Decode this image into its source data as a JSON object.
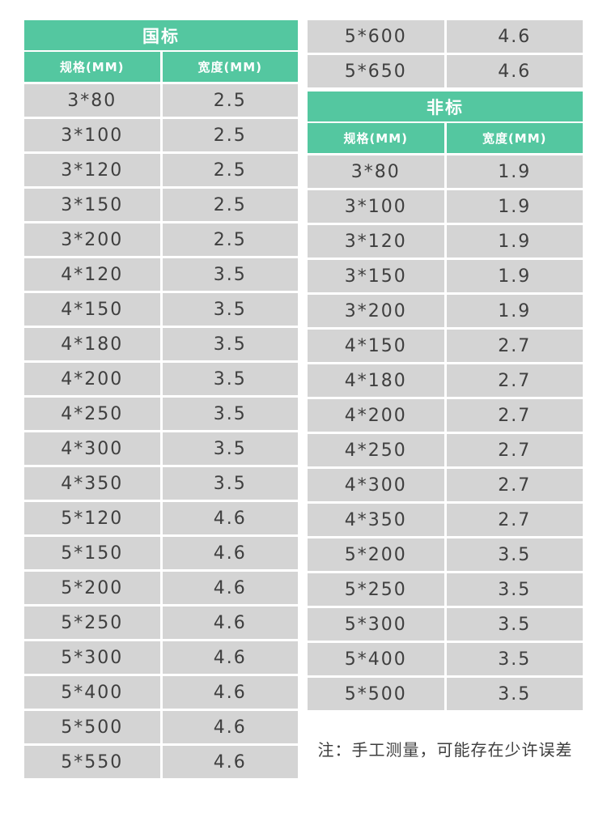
{
  "tables": {
    "guobiao": {
      "title": "国标",
      "columns": [
        "规格(MM)",
        "宽度(MM)"
      ],
      "rows_left": [
        [
          "3*80",
          "2.5"
        ],
        [
          "3*100",
          "2.5"
        ],
        [
          "3*120",
          "2.5"
        ],
        [
          "3*150",
          "2.5"
        ],
        [
          "3*200",
          "2.5"
        ],
        [
          "4*120",
          "3.5"
        ],
        [
          "4*150",
          "3.5"
        ],
        [
          "4*180",
          "3.5"
        ],
        [
          "4*200",
          "3.5"
        ],
        [
          "4*250",
          "3.5"
        ],
        [
          "4*300",
          "3.5"
        ],
        [
          "4*350",
          "3.5"
        ],
        [
          "5*120",
          "4.6"
        ],
        [
          "5*150",
          "4.6"
        ],
        [
          "5*200",
          "4.6"
        ],
        [
          "5*250",
          "4.6"
        ],
        [
          "5*300",
          "4.6"
        ],
        [
          "5*400",
          "4.6"
        ],
        [
          "5*500",
          "4.6"
        ],
        [
          "5*550",
          "4.6"
        ]
      ],
      "rows_continued_right": [
        [
          "5*600",
          "4.6"
        ],
        [
          "5*650",
          "4.6"
        ]
      ]
    },
    "feibiao": {
      "title": "非标",
      "columns": [
        "规格(MM)",
        "宽度(MM)"
      ],
      "rows": [
        [
          "3*80",
          "1.9"
        ],
        [
          "3*100",
          "1.9"
        ],
        [
          "3*120",
          "1.9"
        ],
        [
          "3*150",
          "1.9"
        ],
        [
          "3*200",
          "1.9"
        ],
        [
          "4*150",
          "2.7"
        ],
        [
          "4*180",
          "2.7"
        ],
        [
          "4*200",
          "2.7"
        ],
        [
          "4*250",
          "2.7"
        ],
        [
          "4*300",
          "2.7"
        ],
        [
          "4*350",
          "2.7"
        ],
        [
          "5*200",
          "3.5"
        ],
        [
          "5*250",
          "3.5"
        ],
        [
          "5*300",
          "3.5"
        ],
        [
          "5*400",
          "3.5"
        ],
        [
          "5*500",
          "3.5"
        ]
      ]
    }
  },
  "note": "注：手工测量，可能存在少许误差",
  "colors": {
    "header_green": "#54c7a0",
    "row_gray": "#d4d4d4",
    "gap_white": "#ffffff",
    "text_dark": "#3f3f3f",
    "header_text": "#ffffff"
  },
  "chart_data": [
    {
      "type": "table",
      "title": "国标",
      "columns": [
        "规格(MM)",
        "宽度(MM)"
      ],
      "rows": [
        [
          "3*80",
          "2.5"
        ],
        [
          "3*100",
          "2.5"
        ],
        [
          "3*120",
          "2.5"
        ],
        [
          "3*150",
          "2.5"
        ],
        [
          "3*200",
          "2.5"
        ],
        [
          "4*120",
          "3.5"
        ],
        [
          "4*150",
          "3.5"
        ],
        [
          "4*180",
          "3.5"
        ],
        [
          "4*200",
          "3.5"
        ],
        [
          "4*250",
          "3.5"
        ],
        [
          "4*300",
          "3.5"
        ],
        [
          "4*350",
          "3.5"
        ],
        [
          "5*120",
          "4.6"
        ],
        [
          "5*150",
          "4.6"
        ],
        [
          "5*200",
          "4.6"
        ],
        [
          "5*250",
          "4.6"
        ],
        [
          "5*300",
          "4.6"
        ],
        [
          "5*400",
          "4.6"
        ],
        [
          "5*500",
          "4.6"
        ],
        [
          "5*550",
          "4.6"
        ],
        [
          "5*600",
          "4.6"
        ],
        [
          "5*650",
          "4.6"
        ]
      ]
    },
    {
      "type": "table",
      "title": "非标",
      "columns": [
        "规格(MM)",
        "宽度(MM)"
      ],
      "rows": [
        [
          "3*80",
          "1.9"
        ],
        [
          "3*100",
          "1.9"
        ],
        [
          "3*120",
          "1.9"
        ],
        [
          "3*150",
          "1.9"
        ],
        [
          "3*200",
          "1.9"
        ],
        [
          "4*150",
          "2.7"
        ],
        [
          "4*180",
          "2.7"
        ],
        [
          "4*200",
          "2.7"
        ],
        [
          "4*250",
          "2.7"
        ],
        [
          "4*300",
          "2.7"
        ],
        [
          "4*350",
          "2.7"
        ],
        [
          "5*200",
          "3.5"
        ],
        [
          "5*250",
          "3.5"
        ],
        [
          "5*300",
          "3.5"
        ],
        [
          "5*400",
          "3.5"
        ],
        [
          "5*500",
          "3.5"
        ]
      ]
    }
  ]
}
